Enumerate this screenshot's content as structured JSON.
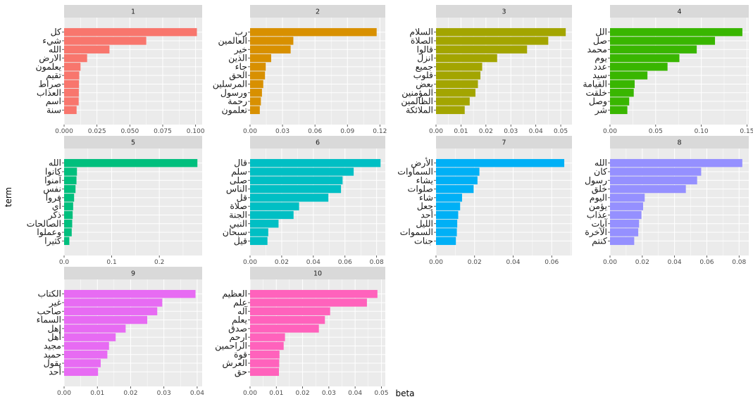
{
  "chart_data": {
    "type": "bar",
    "orientation": "horizontal",
    "layout": "facet_wrap",
    "ncol": 4,
    "xlabel": "beta",
    "ylabel": "term",
    "grid": true,
    "legend": "none",
    "facets": [
      {
        "label": "1",
        "color": "#F8766D",
        "xlim": [
          0,
          0.105
        ],
        "ticks": [
          0,
          0.025,
          0.05,
          0.075,
          0.1
        ],
        "tick_labels": [
          "0.000",
          "0.025",
          "0.050",
          "0.075",
          "0.100"
        ],
        "terms": [
          "كل",
          "شيء",
          "الله",
          "الارض",
          "يعلمون",
          "تقيم",
          "صراط",
          "العذاب",
          "اسم",
          "سنة"
        ],
        "values": [
          0.101,
          0.0625,
          0.0345,
          0.0175,
          0.0125,
          0.0115,
          0.0113,
          0.0112,
          0.0111,
          0.0095
        ]
      },
      {
        "label": "2",
        "color": "#D89000",
        "xlim": [
          0,
          0.125
        ],
        "ticks": [
          0,
          0.03,
          0.06,
          0.09,
          0.12
        ],
        "tick_labels": [
          "0.00",
          "0.03",
          "0.06",
          "0.09",
          "0.12"
        ],
        "terms": [
          "رب",
          "العالمين",
          "خير",
          "الذين",
          "جاء",
          "الحق",
          "المرسلين",
          "ورسول",
          "رحمة",
          "تعلمون"
        ],
        "values": [
          0.117,
          0.04,
          0.0375,
          0.0195,
          0.0145,
          0.0138,
          0.0122,
          0.011,
          0.01,
          0.009
        ]
      },
      {
        "label": "3",
        "color": "#A3A500",
        "xlim": [
          0,
          0.0545
        ],
        "ticks": [
          0,
          0.01,
          0.02,
          0.03,
          0.04,
          0.05
        ],
        "tick_labels": [
          "0.00",
          "0.01",
          "0.02",
          "0.03",
          "0.04",
          "0.05"
        ],
        "terms": [
          "السلام",
          "الصلاة",
          "قالوا",
          "انزل",
          "جميع",
          "قلوب",
          "بعض",
          "المؤمنين",
          "الظالمين",
          "الملائكة"
        ],
        "values": [
          0.052,
          0.045,
          0.0365,
          0.0245,
          0.0185,
          0.0178,
          0.0168,
          0.0158,
          0.0135,
          0.0115
        ]
      },
      {
        "label": "4",
        "color": "#39B600",
        "xlim": [
          0,
          0.152
        ],
        "ticks": [
          0,
          0.05,
          0.1,
          0.15
        ],
        "tick_labels": [
          "0.00",
          "0.05",
          "0.10",
          "0.15"
        ],
        "terms": [
          "الل",
          "صل",
          "محمد",
          "يوم",
          "عدد",
          "سيد",
          "القيامة",
          "خلقت",
          "وصل",
          "شر"
        ],
        "values": [
          0.145,
          0.115,
          0.095,
          0.076,
          0.063,
          0.041,
          0.027,
          0.026,
          0.021,
          0.019
        ]
      },
      {
        "label": "5",
        "color": "#00BF7D",
        "xlim": [
          0,
          0.29
        ],
        "ticks": [
          0,
          0.1,
          0.2
        ],
        "tick_labels": [
          "0.0",
          "0.1",
          "0.2"
        ],
        "terms": [
          "الله",
          "كانوا",
          "آمنوا",
          "نفس",
          "فروا",
          "أي",
          "ذكر",
          "الصالحات",
          "وعملوا",
          "كثيرا"
        ],
        "values": [
          0.28,
          0.027,
          0.026,
          0.024,
          0.021,
          0.019,
          0.018,
          0.017,
          0.016,
          0.011
        ]
      },
      {
        "label": "6",
        "color": "#00BFC4",
        "xlim": [
          0,
          0.0855
        ],
        "ticks": [
          0,
          0.02,
          0.04,
          0.06,
          0.08
        ],
        "tick_labels": [
          "0.00",
          "0.02",
          "0.04",
          "0.06",
          "0.08"
        ],
        "terms": [
          "قال",
          "سلم",
          "صلى",
          "الناس",
          "قل",
          "صلاة",
          "الجنة",
          "النبي",
          "سبحان",
          "قيل"
        ],
        "values": [
          0.0825,
          0.0655,
          0.0585,
          0.0575,
          0.0495,
          0.031,
          0.0275,
          0.018,
          0.0115,
          0.011
        ]
      },
      {
        "label": "7",
        "color": "#00B0F6",
        "xlim": [
          0,
          0.0705
        ],
        "ticks": [
          0,
          0.02,
          0.04,
          0.06
        ],
        "tick_labels": [
          "0.00",
          "0.02",
          "0.04",
          "0.06"
        ],
        "terms": [
          "الأرض",
          "السماوات",
          "يشاء",
          "صلوات",
          "شاء",
          "جعل",
          "أحد",
          "الليل",
          "السموات",
          "جنات"
        ],
        "values": [
          0.0665,
          0.0225,
          0.0215,
          0.0195,
          0.0135,
          0.0125,
          0.0115,
          0.011,
          0.0108,
          0.0103
        ]
      },
      {
        "label": "8",
        "color": "#9590FF",
        "xlim": [
          0,
          0.086
        ],
        "ticks": [
          0,
          0.02,
          0.04,
          0.06,
          0.08
        ],
        "tick_labels": [
          "0.00",
          "0.02",
          "0.04",
          "0.06",
          "0.08"
        ],
        "terms": [
          "الله",
          "كان",
          "رسول",
          "خلق",
          "اليوم",
          "يؤمن",
          "عذاب",
          "آيات",
          "الآخرة",
          "كنتم"
        ],
        "values": [
          0.082,
          0.0565,
          0.054,
          0.047,
          0.0215,
          0.0205,
          0.0195,
          0.018,
          0.0175,
          0.015
        ]
      },
      {
        "label": "9",
        "color": "#E76BF3",
        "xlim": [
          0,
          0.0415
        ],
        "ticks": [
          0,
          0.01,
          0.02,
          0.03,
          0.04
        ],
        "tick_labels": [
          "0.00",
          "0.01",
          "0.02",
          "0.03",
          "0.04"
        ],
        "terms": [
          "الكتاب",
          "غير",
          "صاحب",
          "السماء",
          "إهل",
          "أهل",
          "مجيد",
          "حميد",
          "يقول",
          "أحد"
        ],
        "values": [
          0.0395,
          0.0295,
          0.028,
          0.025,
          0.0185,
          0.0155,
          0.0135,
          0.013,
          0.011,
          0.0102
        ]
      },
      {
        "label": "10",
        "color": "#FF62BC",
        "xlim": [
          0,
          0.0515
        ],
        "ticks": [
          0,
          0.01,
          0.02,
          0.03,
          0.04,
          0.05
        ],
        "tick_labels": [
          "0.00",
          "0.01",
          "0.02",
          "0.03",
          "0.04",
          "0.05"
        ],
        "terms": [
          "العظيم",
          "علم",
          "آله",
          "يعلم",
          "صدق",
          "ارحم",
          "الراحمين",
          "قوة",
          "العرش",
          "حق"
        ],
        "values": [
          0.0485,
          0.0445,
          0.0305,
          0.0285,
          0.0262,
          0.0133,
          0.0128,
          0.0112,
          0.0111,
          0.011
        ]
      }
    ]
  }
}
